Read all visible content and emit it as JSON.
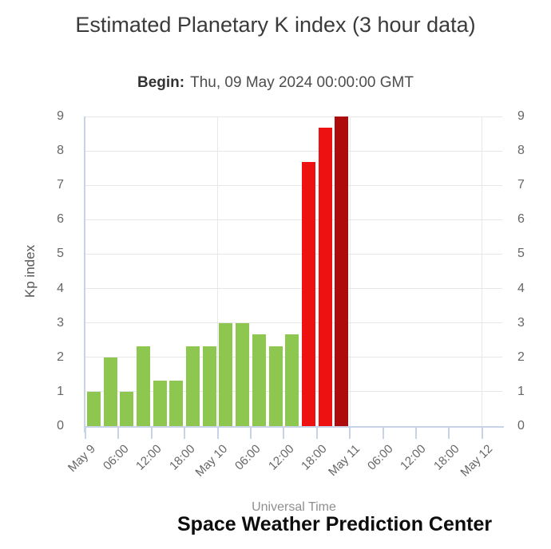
{
  "header": {
    "title": "Estimated Planetary K index (3 hour data)",
    "begin_label": "Begin:",
    "begin_value": "Thu, 09 May 2024 00:00:00 GMT"
  },
  "footer": {
    "xaxis_title": "Universal Time",
    "credit": "Space Weather Prediction Center"
  },
  "chart_data": {
    "type": "bar",
    "title": "Estimated Planetary K index (3 hour data)",
    "subtitle": "Begin: Thu, 09 May 2024 00:00:00 GMT",
    "ylabel": "Kp index",
    "xlabel": "Universal Time",
    "ylim": [
      0,
      9
    ],
    "yticks": [
      0,
      1,
      2,
      3,
      4,
      5,
      6,
      7,
      8,
      9
    ],
    "y_axis_sides": [
      "left",
      "right"
    ],
    "grid": true,
    "legend": false,
    "interval_hours": 3,
    "x_tick_labels": [
      "May 9",
      "06:00",
      "12:00",
      "18:00",
      "May 10",
      "06:00",
      "12:00",
      "18:00",
      "May 11",
      "06:00",
      "12:00",
      "18:00",
      "May 12"
    ],
    "day_gridline_tick_indices": [
      4,
      8,
      12
    ],
    "x_start_times_utc": [
      "2024-05-09 00:00",
      "2024-05-09 03:00",
      "2024-05-09 06:00",
      "2024-05-09 09:00",
      "2024-05-09 12:00",
      "2024-05-09 15:00",
      "2024-05-09 18:00",
      "2024-05-09 21:00",
      "2024-05-10 00:00",
      "2024-05-10 03:00",
      "2024-05-10 06:00",
      "2024-05-10 09:00",
      "2024-05-10 12:00",
      "2024-05-10 15:00",
      "2024-05-10 18:00",
      "2024-05-10 21:00"
    ],
    "values": [
      1,
      2,
      1,
      2.33,
      1.33,
      1.33,
      2.33,
      2.33,
      3,
      3,
      2.67,
      2.33,
      2.67,
      7.67,
      8.67,
      9
    ],
    "bar_colors": [
      "#8DC750",
      "#8DC750",
      "#8DC750",
      "#8DC750",
      "#8DC750",
      "#8DC750",
      "#8DC750",
      "#8DC750",
      "#8DC750",
      "#8DC750",
      "#8DC750",
      "#8DC750",
      "#8DC750",
      "#ED1111",
      "#ED1111",
      "#AE0C0C"
    ],
    "colors": {
      "quiet_green": "#8DC750",
      "storm_red": "#ED1111",
      "extreme_dark_red": "#AE0C0C",
      "grid": "#E6E6E6",
      "axis": "#C9D3E8",
      "tick_label": "#666666"
    }
  }
}
